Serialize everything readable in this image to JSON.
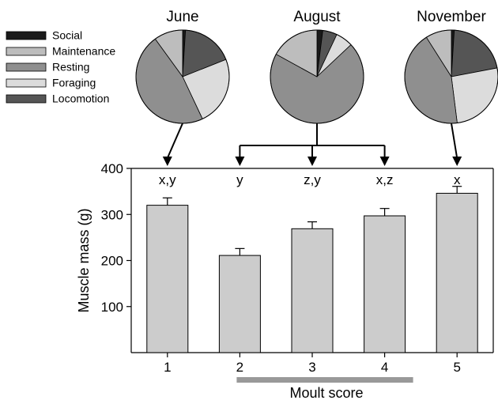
{
  "chart_data": [
    {
      "type": "pie",
      "title": "June",
      "legend_position": "left",
      "slices": [
        {
          "name": "Social",
          "value": 1,
          "color": "#1a1a1a"
        },
        {
          "name": "Locomotion",
          "value": 18,
          "color": "#555555"
        },
        {
          "name": "Foraging",
          "value": 24,
          "color": "#dcdcdc"
        },
        {
          "name": "Resting",
          "value": 47,
          "color": "#8f8f8f"
        },
        {
          "name": "Maintenance",
          "value": 10,
          "color": "#bdbdbd"
        }
      ]
    },
    {
      "type": "pie",
      "title": "August",
      "slices": [
        {
          "name": "Social",
          "value": 2,
          "color": "#1a1a1a"
        },
        {
          "name": "Locomotion",
          "value": 5,
          "color": "#555555"
        },
        {
          "name": "Foraging",
          "value": 6,
          "color": "#dcdcdc"
        },
        {
          "name": "Resting",
          "value": 70,
          "color": "#8f8f8f"
        },
        {
          "name": "Maintenance",
          "value": 17,
          "color": "#bdbdbd"
        }
      ]
    },
    {
      "type": "pie",
      "title": "November",
      "slices": [
        {
          "name": "Social",
          "value": 1,
          "color": "#1a1a1a"
        },
        {
          "name": "Locomotion",
          "value": 21,
          "color": "#555555"
        },
        {
          "name": "Foraging",
          "value": 26,
          "color": "#dcdcdc"
        },
        {
          "name": "Resting",
          "value": 43,
          "color": "#8f8f8f"
        },
        {
          "name": "Maintenance",
          "value": 9,
          "color": "#bdbdbd"
        }
      ]
    },
    {
      "type": "bar",
      "categories": [
        "1",
        "2",
        "3",
        "4",
        "5"
      ],
      "values": [
        320,
        211,
        269,
        297,
        346
      ],
      "errors": [
        16,
        15,
        15,
        16,
        15
      ],
      "group_letters": [
        "x,y",
        "y",
        "z,y",
        "x,z",
        "x"
      ],
      "xlabel": "Moult score",
      "ylabel": "Muscle mass (g)",
      "ylim": [
        0,
        400
      ],
      "yticks": [
        100,
        200,
        300,
        400
      ],
      "bar_color": "#cccccc",
      "grid": false,
      "moult_bar_color": "#999999",
      "month_links": [
        {
          "month": "June",
          "categories": [
            "1"
          ]
        },
        {
          "month": "August",
          "categories": [
            "2",
            "3",
            "4"
          ]
        },
        {
          "month": "November",
          "categories": [
            "5"
          ]
        }
      ]
    }
  ],
  "legend": {
    "items": [
      {
        "label": "Social",
        "color": "#1a1a1a"
      },
      {
        "label": "Maintenance",
        "color": "#bdbdbd"
      },
      {
        "label": "Resting",
        "color": "#8f8f8f"
      },
      {
        "label": "Foraging",
        "color": "#dcdcdc"
      },
      {
        "label": "Locomotion",
        "color": "#555555"
      }
    ]
  }
}
